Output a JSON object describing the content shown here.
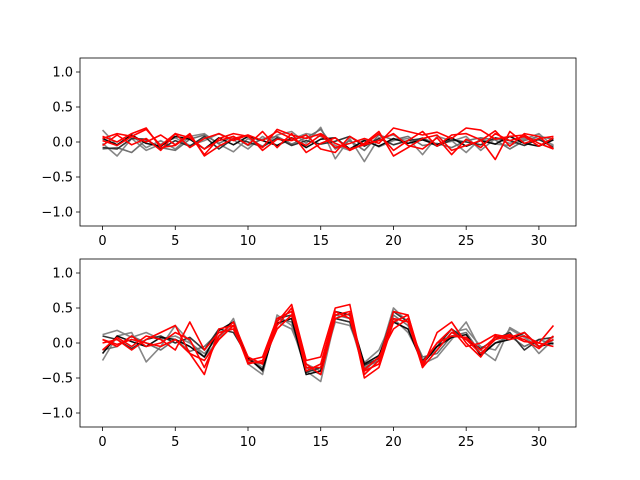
{
  "chart_data": [
    {
      "type": "line",
      "title": "",
      "xlabel": "",
      "ylabel": "",
      "xlim": [
        -1.55,
        32.55
      ],
      "ylim": [
        -1.2,
        1.2
      ],
      "xticks": [
        0,
        5,
        10,
        15,
        20,
        25,
        30
      ],
      "xtick_labels": [
        "0",
        "5",
        "10",
        "15",
        "20",
        "25",
        "30"
      ],
      "yticks": [
        1.0,
        0.5,
        0.0,
        -0.5,
        -1.0
      ],
      "ytick_labels": [
        "1.0",
        "0.5",
        "0.0",
        "−0.5",
        "−1.0"
      ],
      "grid": false,
      "x": [
        0,
        1,
        2,
        3,
        4,
        5,
        6,
        7,
        8,
        9,
        10,
        11,
        12,
        13,
        14,
        15,
        16,
        17,
        18,
        19,
        20,
        21,
        22,
        23,
        24,
        25,
        26,
        27,
        28,
        29,
        30,
        31
      ],
      "series": [
        {
          "color": "#808080",
          "values": [
            0.17,
            -0.05,
            0.1,
            -0.08,
            0.02,
            -0.1,
            0.08,
            0.12,
            -0.03,
            -0.14,
            0.05,
            -0.06,
            0.1,
            0.15,
            -0.02,
            0.21,
            -0.24,
            0.05,
            -0.28,
            0.06,
            0.1,
            -0.02,
            0.06,
            -0.03,
            0.01,
            0.08,
            -0.12,
            0.05,
            -0.02,
            0.06,
            0.03,
            -0.04
          ]
        },
        {
          "color": "#808080",
          "values": [
            -0.02,
            -0.2,
            0.05,
            -0.12,
            -0.03,
            0.06,
            -0.05,
            0.02,
            0.12,
            0.03,
            -0.1,
            0.08,
            -0.05,
            0.04,
            0.12,
            0.08,
            -0.05,
            -0.12,
            0.04,
            -0.07,
            0.02,
            0.05,
            -0.18,
            0.08,
            0.02,
            -0.15,
            0.05,
            -0.03,
            -0.05,
            0.04,
            0.12,
            -0.06
          ]
        },
        {
          "color": "#696969",
          "values": [
            -0.1,
            -0.08,
            -0.15,
            0.03,
            -0.08,
            -0.12,
            0.04,
            0.1,
            -0.02,
            0.08,
            -0.05,
            0.04,
            0.08,
            -0.03,
            0.06,
            0.18,
            -0.1,
            0.02,
            -0.12,
            0.1,
            0.03,
            0.08,
            -0.05,
            -0.02,
            -0.08,
            0.02,
            0.06,
            0.03,
            -0.1,
            0.02,
            0.08,
            0.04
          ]
        },
        {
          "color": "#2b2b2b",
          "values": [
            -0.08,
            -0.1,
            0.05,
            0.04,
            -0.1,
            0.02,
            -0.06,
            0.08,
            -0.1,
            0.05,
            0.0,
            -0.07,
            0.06,
            -0.05,
            0.02,
            -0.03,
            0.01,
            0.08,
            -0.06,
            0.05,
            -0.04,
            0.02,
            0.05,
            -0.06,
            0.03,
            0.0,
            -0.04,
            0.06,
            0.02,
            -0.05,
            0.04,
            -0.08
          ]
        },
        {
          "color": "#000000",
          "values": [
            0.05,
            -0.04,
            0.1,
            -0.02,
            -0.06,
            0.08,
            0.04,
            -0.1,
            0.06,
            -0.04,
            0.08,
            0.02,
            -0.05,
            0.06,
            -0.08,
            0.04,
            0.06,
            -0.1,
            0.02,
            -0.06,
            0.05,
            -0.02,
            0.03,
            -0.04,
            0.06,
            -0.06,
            0.02,
            -0.03,
            0.08,
            -0.02,
            -0.06,
            0.03
          ]
        },
        {
          "color": "#ff0000",
          "values": [
            0.05,
            0.12,
            0.08,
            0.18,
            -0.05,
            0.12,
            -0.08,
            0.05,
            0.12,
            0.02,
            0.1,
            0.02,
            0.15,
            0.05,
            -0.05,
            0.1,
            -0.08,
            -0.02,
            0.05,
            -0.02,
            0.2,
            0.15,
            0.1,
            0.14,
            0.05,
            0.2,
            0.17,
            0.04,
            0.08,
            0.1,
            -0.02,
            -0.1
          ]
        },
        {
          "color": "#ff0000",
          "values": [
            0.08,
            0.0,
            0.12,
            0.2,
            -0.08,
            -0.05,
            0.1,
            -0.18,
            0.05,
            0.12,
            0.08,
            -0.08,
            0.18,
            0.1,
            0.05,
            0.12,
            -0.02,
            -0.1,
            -0.04,
            0.12,
            -0.12,
            0.02,
            0.15,
            -0.06,
            0.1,
            0.12,
            0.03,
            -0.25,
            0.15,
            -0.02,
            0.05,
            0.08
          ]
        },
        {
          "color": "#ff0000",
          "values": [
            -0.05,
            0.1,
            -0.04,
            0.05,
            -0.12,
            0.12,
            0.06,
            -0.1,
            0.02,
            0.08,
            -0.04,
            0.15,
            -0.08,
            0.12,
            -0.15,
            -0.02,
            0.06,
            -0.12,
            -0.02,
            0.15,
            -0.2,
            -0.08,
            0.05,
            0.1,
            -0.12,
            -0.05,
            0.02,
            0.16,
            -0.06,
            0.12,
            0.08,
            -0.1
          ]
        },
        {
          "color": "#ff0000",
          "values": [
            0.02,
            -0.05,
            0.08,
            0.0,
            0.1,
            -0.04,
            0.12,
            -0.2,
            -0.06,
            0.05,
            0.1,
            -0.12,
            0.04,
            0.02,
            0.1,
            -0.1,
            -0.15,
            0.08,
            -0.04,
            0.02,
            0.12,
            -0.05,
            -0.1,
            0.06,
            -0.18,
            0.04,
            -0.08,
            0.12,
            0.02,
            0.08,
            -0.06,
            0.06
          ]
        }
      ]
    },
    {
      "type": "line",
      "title": "",
      "xlabel": "",
      "ylabel": "",
      "xlim": [
        -1.55,
        32.55
      ],
      "ylim": [
        -1.2,
        1.2
      ],
      "xticks": [
        0,
        5,
        10,
        15,
        20,
        25,
        30
      ],
      "xtick_labels": [
        "0",
        "5",
        "10",
        "15",
        "20",
        "25",
        "30"
      ],
      "yticks": [
        1.0,
        0.5,
        0.0,
        -0.5,
        -1.0
      ],
      "ytick_labels": [
        "1.0",
        "0.5",
        "0.0",
        "−0.5",
        "−1.0"
      ],
      "grid": false,
      "x": [
        0,
        1,
        2,
        3,
        4,
        5,
        6,
        7,
        8,
        9,
        10,
        11,
        12,
        13,
        14,
        15,
        16,
        17,
        18,
        19,
        20,
        21,
        22,
        23,
        24,
        25,
        26,
        27,
        28,
        29,
        30,
        31
      ],
      "series": [
        {
          "color": "#808080",
          "values": [
            -0.25,
            0.1,
            0.15,
            -0.27,
            -0.05,
            0.25,
            0.02,
            -0.2,
            0.05,
            0.35,
            -0.3,
            -0.45,
            0.4,
            0.25,
            -0.4,
            -0.55,
            0.35,
            0.3,
            -0.4,
            -0.2,
            0.5,
            0.3,
            -0.3,
            -0.2,
            0.05,
            0.3,
            -0.1,
            -0.25,
            0.22,
            0.1,
            -0.15,
            0.05
          ]
        },
        {
          "color": "#808080",
          "values": [
            0.12,
            0.18,
            0.08,
            0.15,
            0.05,
            0.1,
            0.0,
            -0.15,
            0.1,
            0.25,
            -0.2,
            -0.35,
            0.3,
            0.2,
            -0.3,
            -0.4,
            0.3,
            0.25,
            -0.28,
            -0.1,
            0.35,
            0.15,
            -0.25,
            -0.1,
            0.15,
            0.2,
            -0.05,
            -0.1,
            0.2,
            0.08,
            -0.05,
            0.1
          ]
        },
        {
          "color": "#696969",
          "values": [
            -0.1,
            -0.05,
            0.1,
            0.0,
            -0.1,
            0.05,
            -0.12,
            -0.05,
            0.15,
            0.2,
            -0.25,
            -0.3,
            0.35,
            0.3,
            -0.35,
            -0.45,
            0.4,
            0.35,
            -0.35,
            -0.25,
            0.4,
            0.25,
            -0.2,
            -0.15,
            0.1,
            0.15,
            -0.15,
            0.0,
            0.1,
            -0.05,
            0.05,
            -0.02
          ]
        },
        {
          "color": "#2b2b2b",
          "values": [
            0.1,
            0.05,
            -0.08,
            0.05,
            0.1,
            0.0,
            0.08,
            -0.1,
            0.2,
            0.15,
            -0.2,
            -0.4,
            0.35,
            0.4,
            -0.42,
            -0.35,
            0.35,
            0.3,
            -0.32,
            -0.22,
            0.45,
            0.3,
            -0.25,
            -0.05,
            0.2,
            0.05,
            -0.08,
            0.05,
            0.15,
            -0.1,
            0.05,
            0.08
          ]
        },
        {
          "color": "#000000",
          "values": [
            -0.15,
            0.1,
            0.02,
            -0.05,
            0.08,
            0.05,
            -0.05,
            -0.2,
            0.18,
            0.3,
            -0.22,
            -0.38,
            0.28,
            0.35,
            -0.45,
            -0.4,
            0.45,
            0.4,
            -0.3,
            -0.18,
            0.3,
            0.2,
            -0.3,
            -0.05,
            0.08,
            0.12,
            -0.18,
            0.0,
            0.05,
            0.15,
            -0.05,
            0.0
          ]
        },
        {
          "color": "#ff0000",
          "values": [
            0.0,
            0.05,
            -0.1,
            0.05,
            0.15,
            0.25,
            -0.15,
            -0.45,
            0.2,
            0.25,
            -0.3,
            -0.25,
            0.3,
            0.55,
            -0.25,
            -0.2,
            0.5,
            0.55,
            -0.45,
            -0.25,
            0.45,
            0.4,
            -0.35,
            0.15,
            0.3,
            0.0,
            -0.2,
            0.1,
            0.05,
            0.1,
            0.0,
            0.25
          ]
        },
        {
          "color": "#ff0000",
          "values": [
            0.05,
            -0.05,
            0.1,
            -0.05,
            0.0,
            0.15,
            0.05,
            -0.35,
            0.1,
            0.3,
            -0.2,
            -0.3,
            0.25,
            0.5,
            -0.35,
            -0.35,
            0.4,
            0.45,
            -0.5,
            -0.35,
            0.3,
            0.4,
            -0.3,
            0.0,
            0.2,
            -0.05,
            0.0,
            0.12,
            0.08,
            0.15,
            -0.05,
            0.05
          ]
        },
        {
          "color": "#ff0000",
          "values": [
            -0.1,
            0.08,
            -0.05,
            0.1,
            0.05,
            -0.1,
            0.3,
            -0.1,
            0.15,
            0.2,
            -0.25,
            -0.2,
            0.35,
            0.45,
            -0.4,
            -0.3,
            0.45,
            0.35,
            -0.4,
            -0.3,
            0.35,
            0.3,
            -0.35,
            -0.1,
            0.15,
            0.05,
            -0.15,
            0.05,
            0.1,
            0.05,
            -0.08,
            0.1
          ]
        },
        {
          "color": "#ff0000",
          "values": [
            0.05,
            -0.02,
            0.05,
            0.0,
            -0.05,
            0.05,
            -0.15,
            -0.25,
            0.05,
            0.25,
            -0.28,
            -0.28,
            0.2,
            0.4,
            -0.3,
            -0.45,
            0.35,
            0.42,
            -0.38,
            -0.2,
            0.2,
            0.35,
            -0.28,
            0.0,
            0.1,
            0.08,
            -0.1,
            0.08,
            0.12,
            0.02,
            0.0,
            -0.05
          ]
        }
      ]
    }
  ]
}
